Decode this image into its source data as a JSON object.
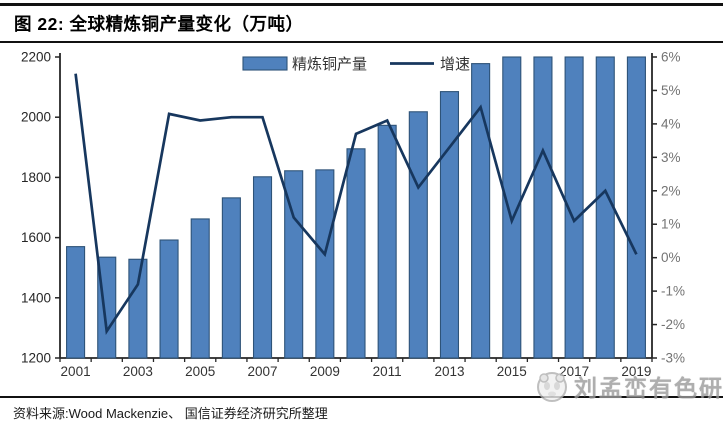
{
  "figure": {
    "title": "图 22:  全球精炼铜产量变化（万吨）"
  },
  "source_note": "资料来源:Wood Mackenzie、 国信证券经济研究所整理",
  "watermark": {
    "text": "刘孟峦有色研究",
    "logo": "panda-badge-icon"
  },
  "colors": {
    "bar_fill": "#4F81BD",
    "bar_border": "#2E5378",
    "line_color": "#17375E",
    "axis_line": "#262626",
    "left_tick_label": "#262626",
    "right_tick_label": "#737373",
    "x_tick_label": "#333333",
    "legend_text": "#333333",
    "watermark_gray": "#9a9a9a"
  },
  "chart_data": {
    "type": "combo",
    "title": "全球精炼铜产量变化（万吨）",
    "categories": [
      2001,
      2002,
      2003,
      2004,
      2005,
      2006,
      2007,
      2008,
      2009,
      2010,
      2011,
      2012,
      2013,
      2014,
      2015,
      2016,
      2017,
      2018,
      2019
    ],
    "series": [
      {
        "name": "精炼铜产量",
        "type": "bar",
        "axis": "left",
        "values": [
          1570,
          1535,
          1528,
          1592,
          1662,
          1732,
          1802,
          1822,
          1825,
          1895,
          1973,
          2018,
          2085,
          2178,
          2200,
          2200,
          2200,
          2200,
          2200
        ]
      },
      {
        "name": "增速",
        "type": "line",
        "axis": "right",
        "values": [
          5.5,
          -2.2,
          -0.8,
          4.3,
          4.1,
          4.2,
          4.2,
          1.2,
          0.1,
          3.7,
          4.1,
          2.1,
          3.3,
          4.5,
          1.1,
          3.2,
          1.1,
          2.0,
          0.1
        ]
      }
    ],
    "left_axis": {
      "min": 1200,
      "max": 2200,
      "step": 200,
      "tick_labels": [
        "1200",
        "1400",
        "1600",
        "1800",
        "2000",
        "2200"
      ]
    },
    "right_axis": {
      "min": -3,
      "max": 6,
      "step": 1,
      "suffix": "%",
      "tick_labels": [
        "-3%",
        "-2%",
        "-1%",
        "0%",
        "1%",
        "2%",
        "3%",
        "4%",
        "5%",
        "6%"
      ]
    },
    "x_ticks": [
      {
        "index": 0,
        "label": "2001"
      },
      {
        "index": 2,
        "label": "2003"
      },
      {
        "index": 4,
        "label": "2005"
      },
      {
        "index": 6,
        "label": "2007"
      },
      {
        "index": 8,
        "label": "2009"
      },
      {
        "index": 10,
        "label": "2011"
      },
      {
        "index": 12,
        "label": "2013"
      },
      {
        "index": 14,
        "label": "2015"
      },
      {
        "index": 16,
        "label": "2017"
      },
      {
        "index": 18,
        "label": "2019"
      }
    ],
    "legend_position": "top",
    "grid": false
  }
}
